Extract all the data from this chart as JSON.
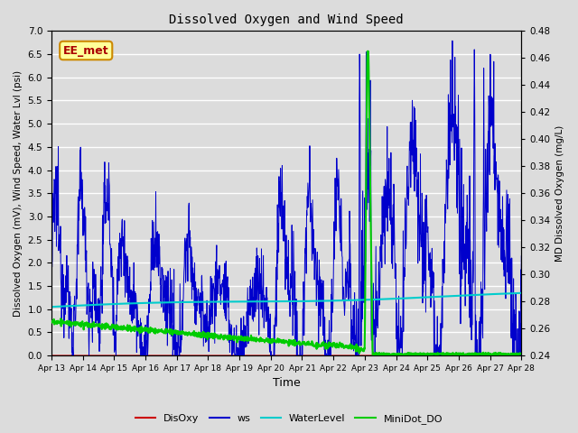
{
  "title": "Dissolved Oxygen and Wind Speed",
  "xlabel": "Time",
  "ylabel_left": "Dissolved Oxygen (mV), Wind Speed, Water Lvl (psi)",
  "ylabel_right": "MD Dissolved Oxygen (mg/L)",
  "ylim_left": [
    0.0,
    7.0
  ],
  "ylim_right": [
    0.24,
    0.48
  ],
  "annotation_text": "EE_met",
  "bg_color": "#dcdcdc",
  "plot_bg_color": "#dcdcdc",
  "grid_color": "#ffffff",
  "colors": {
    "DisOxy": "#cc0000",
    "ws": "#0000cc",
    "WaterLevel": "#00cccc",
    "MiniDot_DO": "#00cc00"
  },
  "x_ticks": [
    "Apr 13",
    "Apr 14",
    "Apr 15",
    "Apr 16",
    "Apr 17",
    "Apr 18",
    "Apr 19",
    "Apr 20",
    "Apr 21",
    "Apr 22",
    "Apr 23",
    "Apr 24",
    "Apr 25",
    "Apr 26",
    "Apr 27",
    "Apr 28"
  ],
  "x_tick_positions": [
    0,
    1,
    2,
    3,
    4,
    5,
    6,
    7,
    8,
    9,
    10,
    11,
    12,
    13,
    14,
    15
  ],
  "left_yticks": [
    0.0,
    0.5,
    1.0,
    1.5,
    2.0,
    2.5,
    3.0,
    3.5,
    4.0,
    4.5,
    5.0,
    5.5,
    6.0,
    6.5,
    7.0
  ],
  "right_yticks": [
    0.24,
    0.26,
    0.28,
    0.3,
    0.32,
    0.34,
    0.36,
    0.38,
    0.4,
    0.42,
    0.44,
    0.46,
    0.48
  ]
}
